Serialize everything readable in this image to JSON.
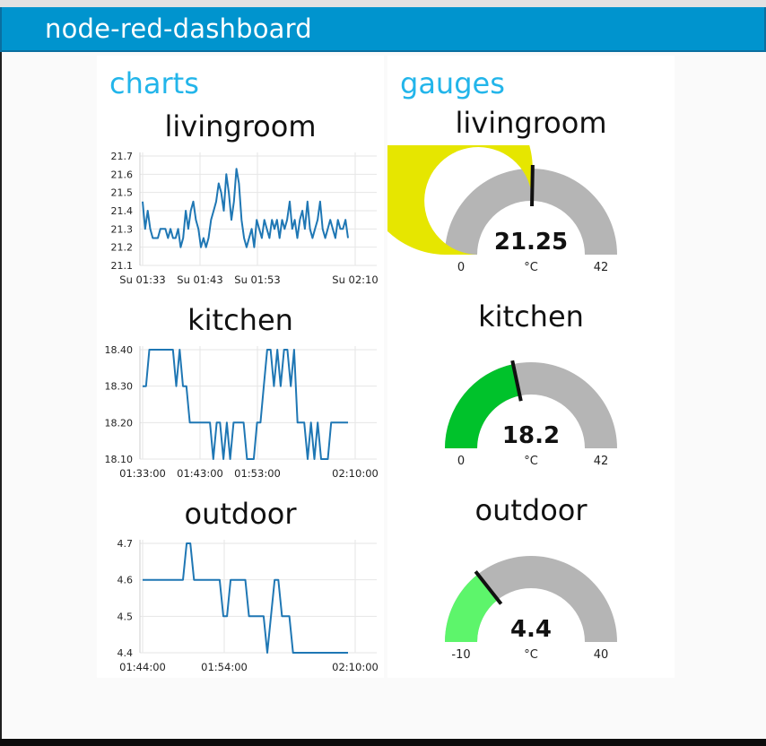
{
  "header": {
    "title": "node-red-dashboard"
  },
  "groups": {
    "charts": {
      "title": "charts"
    },
    "gauges": {
      "title": "gauges"
    }
  },
  "charts": [
    {
      "title": "livingroom",
      "chart_data": {
        "type": "line",
        "title": "livingroom",
        "xlabel": "",
        "ylabel": "",
        "x_ticks": [
          "Su 01:33",
          "Su 01:43",
          "Su 01:53",
          "Su 02:10"
        ],
        "y_ticks": [
          "21.7",
          "21.6",
          "21.5",
          "21.4",
          "21.3",
          "21.2",
          "21.1"
        ],
        "ylim": [
          21.1,
          21.7
        ],
        "grid": true,
        "series": [
          {
            "color": "#1f77b4",
            "values": [
              21.45,
              21.3,
              21.4,
              21.3,
              21.25,
              21.25,
              21.25,
              21.3,
              21.3,
              21.3,
              21.25,
              21.3,
              21.25,
              21.25,
              21.3,
              21.2,
              21.25,
              21.4,
              21.3,
              21.4,
              21.45,
              21.35,
              21.3,
              21.2,
              21.25,
              21.2,
              21.25,
              21.35,
              21.4,
              21.45,
              21.55,
              21.5,
              21.4,
              21.6,
              21.5,
              21.35,
              21.45,
              21.63,
              21.55,
              21.35,
              21.25,
              21.2,
              21.25,
              21.3,
              21.2,
              21.35,
              21.3,
              21.25,
              21.35,
              21.3,
              21.25,
              21.35,
              21.3,
              21.35,
              21.25,
              21.35,
              21.3,
              21.35,
              21.45,
              21.3,
              21.35,
              21.25,
              21.35,
              21.4,
              21.3,
              21.45,
              21.3,
              21.25,
              21.3,
              21.35,
              21.45,
              21.3,
              21.25,
              21.3,
              21.35,
              21.3,
              21.25,
              21.35,
              21.3,
              21.3,
              21.35,
              21.25
            ]
          }
        ]
      }
    },
    {
      "title": "kitchen",
      "chart_data": {
        "type": "line",
        "title": "kitchen",
        "xlabel": "",
        "ylabel": "",
        "x_ticks": [
          "01:33:00",
          "01:43:00",
          "01:53:00",
          "02:10:00"
        ],
        "y_ticks": [
          "18.40",
          "18.30",
          "18.20",
          "18.10"
        ],
        "ylim": [
          18.1,
          18.4
        ],
        "grid": true,
        "series": [
          {
            "color": "#1f77b4",
            "values": [
              18.3,
              18.3,
              18.4,
              18.4,
              18.4,
              18.4,
              18.4,
              18.4,
              18.4,
              18.4,
              18.3,
              18.4,
              18.3,
              18.3,
              18.2,
              18.2,
              18.2,
              18.2,
              18.2,
              18.2,
              18.2,
              18.1,
              18.2,
              18.2,
              18.1,
              18.2,
              18.1,
              18.2,
              18.2,
              18.2,
              18.2,
              18.1,
              18.1,
              18.1,
              18.2,
              18.2,
              18.3,
              18.4,
              18.4,
              18.3,
              18.4,
              18.3,
              18.4,
              18.4,
              18.3,
              18.4,
              18.2,
              18.2,
              18.2,
              18.1,
              18.2,
              18.1,
              18.2,
              18.1,
              18.1,
              18.1,
              18.2,
              18.2,
              18.2,
              18.2,
              18.2,
              18.2
            ]
          }
        ]
      }
    },
    {
      "title": "outdoor",
      "chart_data": {
        "type": "line",
        "title": "outdoor",
        "xlabel": "",
        "ylabel": "",
        "x_ticks": [
          "01:44:00",
          "01:54:00",
          "02:10:00"
        ],
        "y_ticks": [
          "4.7",
          "4.6",
          "4.5",
          "4.4"
        ],
        "ylim": [
          4.4,
          4.7
        ],
        "grid": true,
        "series": [
          {
            "color": "#1f77b4",
            "values": [
              4.6,
              4.6,
              4.6,
              4.6,
              4.6,
              4.6,
              4.6,
              4.6,
              4.6,
              4.6,
              4.6,
              4.6,
              4.7,
              4.7,
              4.6,
              4.6,
              4.6,
              4.6,
              4.6,
              4.6,
              4.6,
              4.6,
              4.5,
              4.5,
              4.6,
              4.6,
              4.6,
              4.6,
              4.6,
              4.5,
              4.5,
              4.5,
              4.5,
              4.5,
              4.4,
              4.5,
              4.6,
              4.6,
              4.5,
              4.5,
              4.5,
              4.4,
              4.4,
              4.4,
              4.4,
              4.4,
              4.4,
              4.4,
              4.4,
              4.4,
              4.4,
              4.4,
              4.4,
              4.4,
              4.4,
              4.4,
              4.4
            ]
          }
        ]
      }
    }
  ],
  "gauges": [
    {
      "title": "livingroom",
      "value": "21.25",
      "num": 21.25,
      "unit": "°C",
      "min": "0",
      "max": "42",
      "minNum": 0,
      "maxNum": 42,
      "color": "#e6e600"
    },
    {
      "title": "kitchen",
      "value": "18.2",
      "num": 18.2,
      "unit": "°C",
      "min": "0",
      "max": "42",
      "minNum": 0,
      "maxNum": 42,
      "color": "#00c22b"
    },
    {
      "title": "outdoor",
      "value": "4.4",
      "num": 4.4,
      "unit": "°C",
      "min": "-10",
      "max": "40",
      "minNum": -10,
      "maxNum": 40,
      "color": "#5df56b"
    }
  ],
  "colors": {
    "header": "#0094ce",
    "group_title": "#22b5ea",
    "gauge_track": "#b5b5b5",
    "line": "#1f77b4"
  }
}
